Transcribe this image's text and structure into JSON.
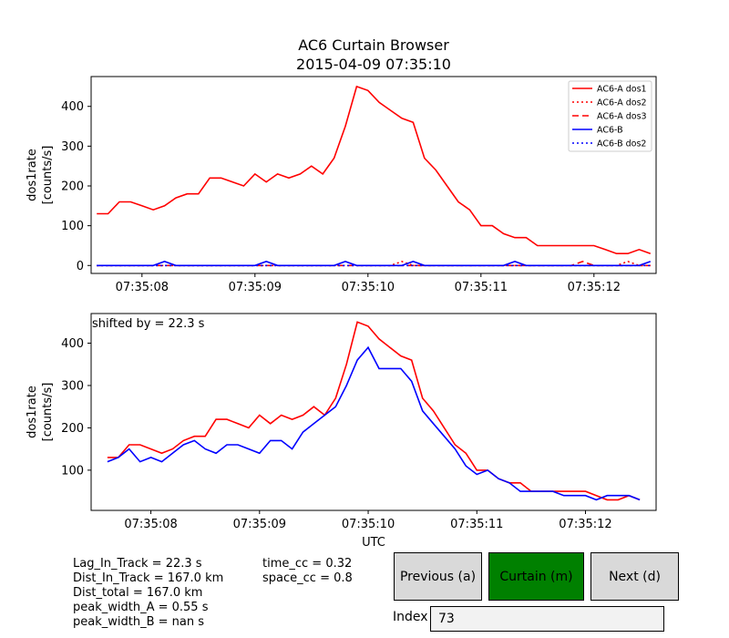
{
  "title": "AC6 Curtain Browser",
  "subtitle": "2015-04-09 07:35:10",
  "stats_left": [
    "Lag_In_Track = 22.3 s",
    "Dist_In_Track = 167.0 km",
    "Dist_total = 167.0 km",
    "peak_width_A = 0.55 s",
    "peak_width_B = nan s"
  ],
  "stats_right": [
    "time_cc = 0.32",
    "space_cc = 0.8"
  ],
  "buttons": {
    "previous": "Previous (a)",
    "curtain": "Curtain (m)",
    "next": "Next (d)"
  },
  "index": {
    "label": "Index",
    "value": "73"
  },
  "colors": {
    "ac6a": "#ff0000",
    "ac6b": "#0000ff",
    "curtain_button": "#008000",
    "button": "#d9d9d9"
  },
  "chart_data": [
    {
      "type": "line",
      "ylabel": "dos1rate\n[counts/s]",
      "xlabel": "",
      "x_ticks": [
        "07:35:08",
        "07:35:09",
        "07:35:10",
        "07:35:11",
        "07:35:12"
      ],
      "x_range": [
        "07:35:07.55",
        "07:35:12.55"
      ],
      "ylim": [
        -20,
        475
      ],
      "y_ticks": [
        0,
        100,
        200,
        300,
        400
      ],
      "legend_position": "upper right",
      "x_start": "07:35:07.6",
      "x_step_s": 0.1,
      "series": [
        {
          "name": "AC6-A dos1",
          "color": "#ff0000",
          "style": "solid",
          "values": [
            130,
            130,
            160,
            160,
            150,
            140,
            150,
            170,
            180,
            180,
            220,
            220,
            210,
            200,
            230,
            210,
            230,
            220,
            230,
            250,
            230,
            270,
            350,
            450,
            440,
            410,
            390,
            370,
            360,
            270,
            240,
            200,
            160,
            140,
            100,
            100,
            80,
            70,
            70,
            50,
            50,
            50,
            50,
            50,
            50,
            40,
            30,
            30,
            40,
            30
          ]
        },
        {
          "name": "AC6-A dos2",
          "color": "#ff0000",
          "style": "dotted",
          "values": [
            0,
            0,
            0,
            0,
            0,
            0,
            0,
            0,
            0,
            0,
            0,
            0,
            0,
            0,
            0,
            0,
            0,
            0,
            0,
            0,
            0,
            0,
            0,
            0,
            0,
            0,
            0,
            10,
            0,
            0,
            0,
            0,
            0,
            0,
            0,
            0,
            0,
            0,
            0,
            0,
            0,
            0,
            0,
            0,
            0,
            0,
            0,
            10,
            0,
            0
          ]
        },
        {
          "name": "AC6-A dos3",
          "color": "#ff0000",
          "style": "dashed",
          "values": [
            0,
            0,
            0,
            0,
            0,
            0,
            0,
            0,
            0,
            0,
            0,
            0,
            0,
            0,
            0,
            0,
            0,
            0,
            0,
            0,
            0,
            0,
            0,
            0,
            0,
            0,
            0,
            0,
            0,
            0,
            0,
            0,
            0,
            0,
            0,
            0,
            0,
            0,
            0,
            0,
            0,
            0,
            0,
            10,
            0,
            0,
            0,
            0,
            0,
            0
          ]
        },
        {
          "name": "AC6-B",
          "color": "#0000ff",
          "style": "solid",
          "values": [
            0,
            0,
            0,
            0,
            0,
            0,
            10,
            0,
            0,
            0,
            0,
            0,
            0,
            0,
            0,
            10,
            0,
            0,
            0,
            0,
            0,
            0,
            10,
            0,
            0,
            0,
            0,
            0,
            10,
            0,
            0,
            0,
            0,
            0,
            0,
            0,
            0,
            10,
            0,
            0,
            0,
            0,
            0,
            0,
            0,
            0,
            0,
            0,
            0,
            10
          ]
        },
        {
          "name": "AC6-B dos2",
          "color": "#0000ff",
          "style": "dotted",
          "values": [
            0,
            0,
            0,
            0,
            0,
            0,
            0,
            0,
            0,
            0,
            0,
            0,
            0,
            0,
            0,
            0,
            0,
            0,
            0,
            0,
            0,
            0,
            0,
            0,
            0,
            0,
            0,
            0,
            0,
            0,
            0,
            0,
            0,
            0,
            0,
            0,
            0,
            0,
            0,
            0,
            0,
            0,
            0,
            0,
            0,
            0,
            0,
            0,
            0,
            0
          ]
        }
      ]
    },
    {
      "type": "line",
      "ylabel": "dos1rate\n[counts/s]",
      "xlabel": "UTC",
      "annotation": "shifted by = 22.3 s",
      "x_ticks": [
        "07:35:08",
        "07:35:09",
        "07:35:10",
        "07:35:11",
        "07:35:12"
      ],
      "x_range": [
        "07:35:07.45",
        "07:35:12.65"
      ],
      "ylim": [
        5,
        470
      ],
      "y_ticks": [
        100,
        200,
        300,
        400
      ],
      "x_start": "07:35:07.6",
      "x_step_s": 0.1,
      "series": [
        {
          "color": "#ff0000",
          "style": "solid",
          "values": [
            130,
            130,
            160,
            160,
            150,
            140,
            150,
            170,
            180,
            180,
            220,
            220,
            210,
            200,
            230,
            210,
            230,
            220,
            230,
            250,
            230,
            270,
            350,
            450,
            440,
            410,
            390,
            370,
            360,
            270,
            240,
            200,
            160,
            140,
            100,
            100,
            80,
            70,
            70,
            50,
            50,
            50,
            50,
            50,
            50,
            40,
            30,
            30,
            40,
            30
          ]
        },
        {
          "color": "#0000ff",
          "style": "solid",
          "values": [
            120,
            130,
            150,
            120,
            130,
            120,
            140,
            160,
            170,
            150,
            140,
            160,
            160,
            150,
            140,
            170,
            170,
            150,
            190,
            210,
            230,
            250,
            300,
            360,
            390,
            340,
            340,
            340,
            310,
            240,
            210,
            180,
            150,
            110,
            90,
            100,
            80,
            70,
            50,
            50,
            50,
            50,
            40,
            40,
            40,
            30,
            40,
            40,
            40,
            30
          ]
        }
      ]
    }
  ]
}
